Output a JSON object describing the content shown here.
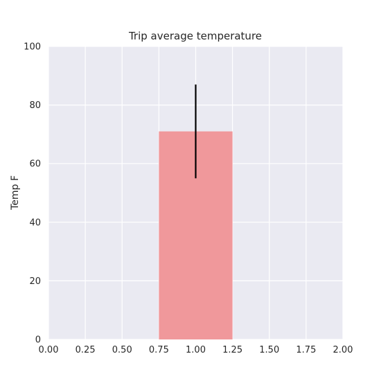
{
  "chart_data": {
    "type": "bar",
    "title": "Trip average temperature",
    "xlabel": "",
    "ylabel": "Temp F",
    "xlim": [
      0.0,
      2.0
    ],
    "ylim": [
      0,
      100
    ],
    "xticks": [
      "0.00",
      "0.25",
      "0.50",
      "0.75",
      "1.00",
      "1.25",
      "1.50",
      "1.75",
      "2.00"
    ],
    "yticks": [
      "0",
      "20",
      "40",
      "60",
      "80",
      "100"
    ],
    "bars": [
      {
        "x": 1.0,
        "width": 0.5,
        "value": 71,
        "error_low": 55,
        "error_high": 87
      }
    ],
    "grid": true,
    "colors": {
      "background": "#eaeaf2",
      "grid": "#ffffff",
      "bar": "#f0989b",
      "error": "#000000"
    }
  }
}
